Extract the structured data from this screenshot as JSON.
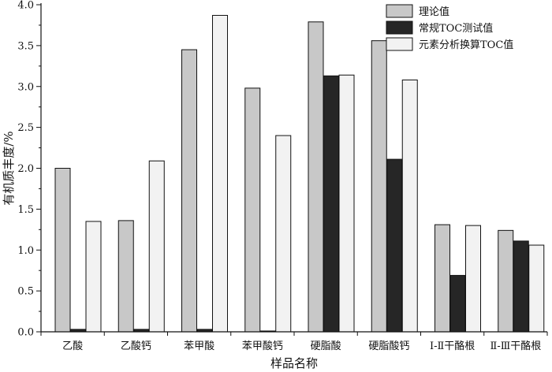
{
  "chart_data": {
    "type": "bar",
    "xlabel": "样品名称",
    "ylabel": "有机质丰度/%",
    "ylim": [
      0,
      4.0
    ],
    "yticks": [
      "0.0",
      "0.5",
      "1.0",
      "1.5",
      "2.0",
      "2.5",
      "3.0",
      "3.5",
      "4.0"
    ],
    "grid": false,
    "legend_position": "top-right",
    "categories": [
      "乙酸",
      "乙酸钙",
      "苯甲酸",
      "苯甲酸钙",
      "硬脂酸",
      "硬脂酸钙",
      "Ⅰ-Ⅱ干酪根",
      "Ⅱ-Ⅲ干酪根"
    ],
    "series": [
      {
        "name": "理论值",
        "color": "#c8c8c8",
        "values": [
          2.0,
          1.36,
          3.45,
          2.98,
          3.79,
          3.56,
          1.31,
          1.24
        ]
      },
      {
        "name": "常规TOC测试值",
        "color": "#262626",
        "values": [
          0.03,
          0.03,
          0.03,
          0.01,
          3.13,
          2.11,
          0.69,
          1.11
        ]
      },
      {
        "name": "元素分析换算TOC值",
        "color": "#f2f2f2",
        "values": [
          1.35,
          2.09,
          3.87,
          2.4,
          3.14,
          3.08,
          1.3,
          1.06
        ]
      }
    ]
  }
}
